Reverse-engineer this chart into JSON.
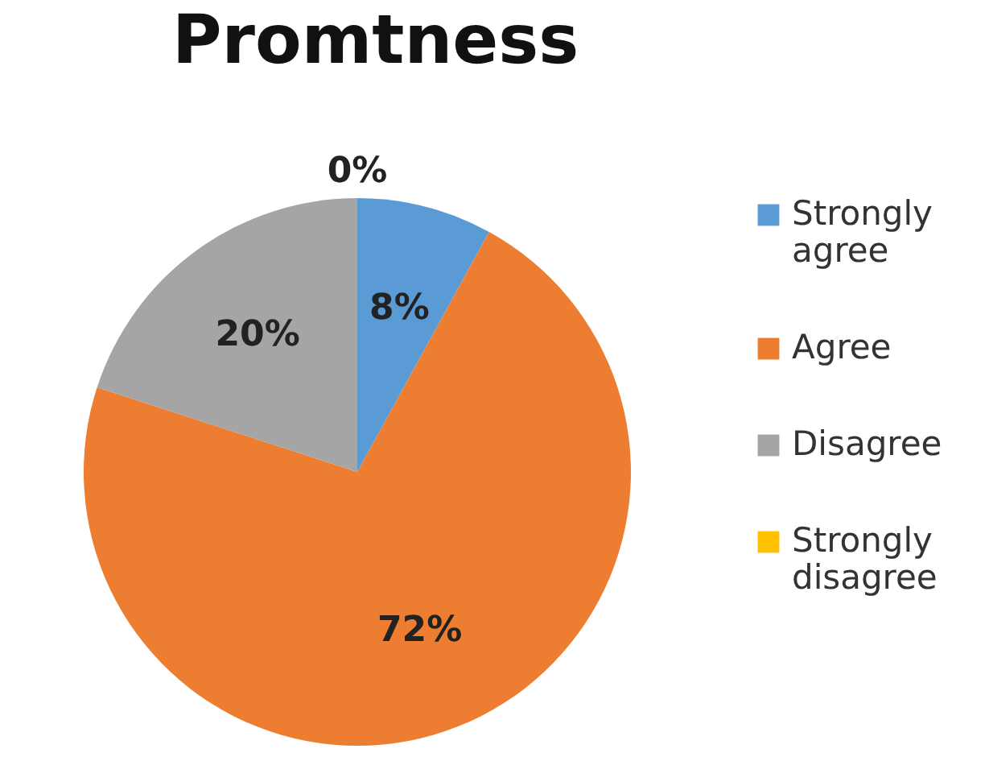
{
  "chart_data": {
    "type": "pie",
    "title": "Promtness",
    "categories": [
      "Strongly agree",
      "Agree",
      "Disagree",
      "Strongly disagree"
    ],
    "values": [
      8,
      72,
      20,
      0
    ],
    "colors": [
      "#5b9bd5",
      "#ed7d31",
      "#a5a5a5",
      "#ffc000"
    ],
    "value_labels": [
      "8%",
      "72%",
      "20%",
      "0%"
    ],
    "legend": "right"
  }
}
